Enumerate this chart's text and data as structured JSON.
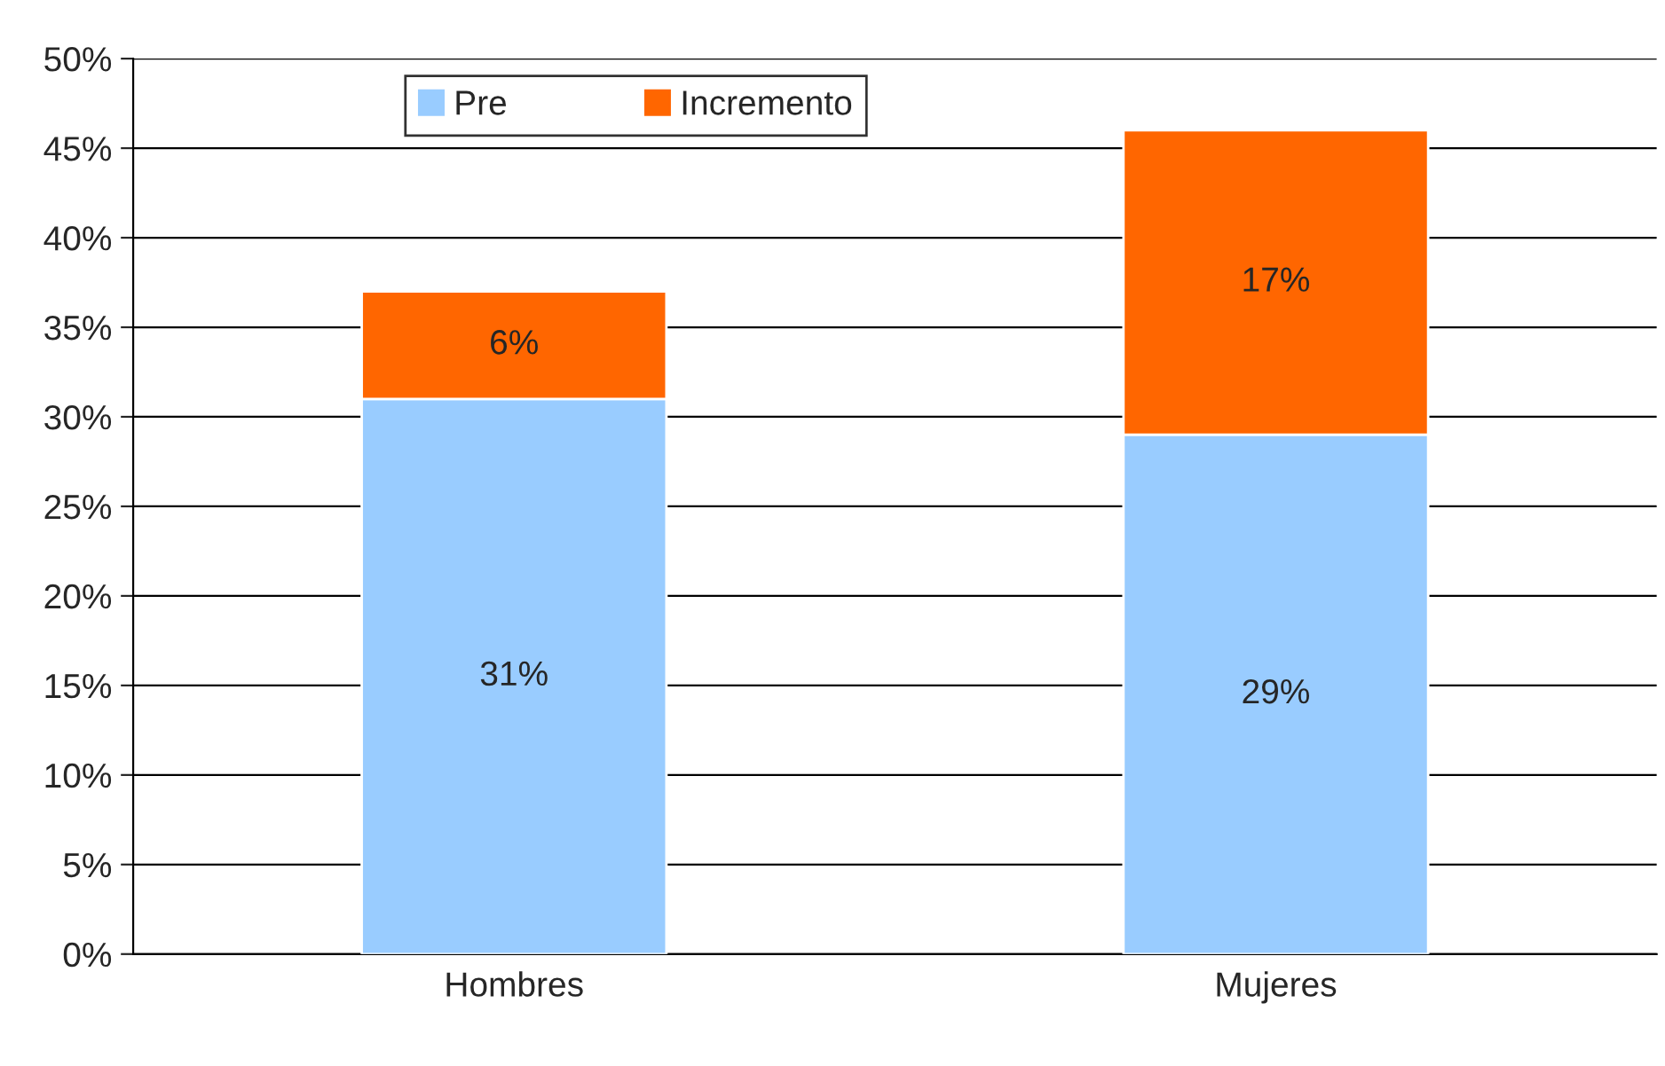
{
  "chart_data": {
    "type": "bar",
    "stacked": true,
    "categories": [
      "Hombres",
      "Mujeres"
    ],
    "series": [
      {
        "name": "Pre",
        "color": "#99ccff",
        "values": [
          31,
          29
        ],
        "value_labels": [
          "31%",
          "29%"
        ]
      },
      {
        "name": "Incremento",
        "color": "#ff6600",
        "values": [
          6,
          17
        ],
        "value_labels": [
          "6%",
          "17%"
        ]
      }
    ],
    "ylim": [
      0,
      50
    ],
    "yticks": [
      {
        "value": 0,
        "label": "0%"
      },
      {
        "value": 5,
        "label": "5%"
      },
      {
        "value": 10,
        "label": "10%"
      },
      {
        "value": 15,
        "label": "15%"
      },
      {
        "value": 20,
        "label": "20%"
      },
      {
        "value": 25,
        "label": "25%"
      },
      {
        "value": 30,
        "label": "30%"
      },
      {
        "value": 35,
        "label": "35%"
      },
      {
        "value": 40,
        "label": "40%"
      },
      {
        "value": 45,
        "label": "45%"
      },
      {
        "value": 50,
        "label": "50%"
      }
    ],
    "grid": "y",
    "legend": "top"
  }
}
